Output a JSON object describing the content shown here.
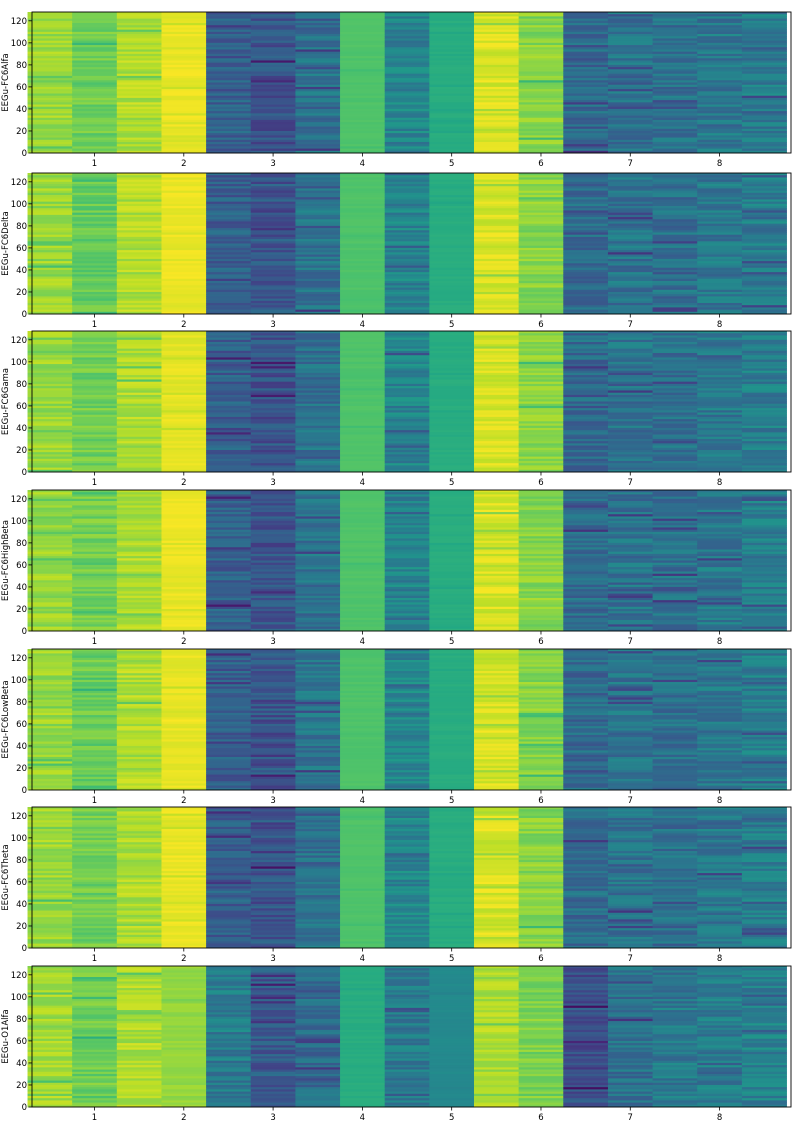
{
  "chart_data": [
    {
      "type": "heatmap",
      "ylabel": "EEGu-FC6Alfa",
      "xticks": [
        "1",
        "2",
        "3",
        "4",
        "5",
        "6",
        "7",
        "8"
      ],
      "yticks": [
        "0",
        "20",
        "40",
        "60",
        "80",
        "100",
        "120"
      ],
      "xlim": [
        0.3,
        8.8
      ],
      "ylim": [
        0,
        128
      ],
      "columns": [
        {
          "x": 0.5,
          "value": 0.85
        },
        {
          "x": 1.0,
          "value": 0.78
        },
        {
          "x": 1.5,
          "value": 0.88
        },
        {
          "x": 2.0,
          "value": 0.97
        },
        {
          "x": 2.5,
          "value": 0.3
        },
        {
          "x": 3.0,
          "value": 0.26
        },
        {
          "x": 3.5,
          "value": 0.38
        },
        {
          "x": 4.0,
          "value": 0.72
        },
        {
          "x": 4.5,
          "value": 0.45
        },
        {
          "x": 5.0,
          "value": 0.62
        },
        {
          "x": 5.5,
          "value": 0.94
        },
        {
          "x": 6.0,
          "value": 0.82
        },
        {
          "x": 6.5,
          "value": 0.35
        },
        {
          "x": 7.0,
          "value": 0.38
        },
        {
          "x": 7.5,
          "value": 0.37
        },
        {
          "x": 8.0,
          "value": 0.4
        },
        {
          "x": 8.5,
          "value": 0.42
        }
      ]
    },
    {
      "type": "heatmap",
      "ylabel": "EEGu-FC6Delta",
      "xticks": [
        "1",
        "2",
        "3",
        "4",
        "5",
        "6",
        "7",
        "8"
      ],
      "yticks": [
        "0",
        "20",
        "40",
        "60",
        "80",
        "100",
        "120"
      ],
      "xlim": [
        0.3,
        8.8
      ],
      "ylim": [
        0,
        128
      ],
      "columns": [
        {
          "x": 0.5,
          "value": 0.85
        },
        {
          "x": 1.0,
          "value": 0.76
        },
        {
          "x": 1.5,
          "value": 0.88
        },
        {
          "x": 2.0,
          "value": 0.97
        },
        {
          "x": 2.5,
          "value": 0.3
        },
        {
          "x": 3.0,
          "value": 0.27
        },
        {
          "x": 3.5,
          "value": 0.38
        },
        {
          "x": 4.0,
          "value": 0.72
        },
        {
          "x": 4.5,
          "value": 0.45
        },
        {
          "x": 5.0,
          "value": 0.62
        },
        {
          "x": 5.5,
          "value": 0.94
        },
        {
          "x": 6.0,
          "value": 0.82
        },
        {
          "x": 6.5,
          "value": 0.35
        },
        {
          "x": 7.0,
          "value": 0.38
        },
        {
          "x": 7.5,
          "value": 0.37
        },
        {
          "x": 8.0,
          "value": 0.4
        },
        {
          "x": 8.5,
          "value": 0.42
        }
      ]
    },
    {
      "type": "heatmap",
      "ylabel": "EEGu-FC6Gama",
      "xticks": [
        "1",
        "2",
        "3",
        "4",
        "5",
        "6",
        "7",
        "8"
      ],
      "yticks": [
        "0",
        "20",
        "40",
        "60",
        "80",
        "100",
        "120"
      ],
      "xlim": [
        0.3,
        8.8
      ],
      "ylim": [
        0,
        128
      ],
      "columns": [
        {
          "x": 0.5,
          "value": 0.85
        },
        {
          "x": 1.0,
          "value": 0.78
        },
        {
          "x": 1.5,
          "value": 0.88
        },
        {
          "x": 2.0,
          "value": 0.96
        },
        {
          "x": 2.5,
          "value": 0.3
        },
        {
          "x": 3.0,
          "value": 0.26
        },
        {
          "x": 3.5,
          "value": 0.38
        },
        {
          "x": 4.0,
          "value": 0.72
        },
        {
          "x": 4.5,
          "value": 0.45
        },
        {
          "x": 5.0,
          "value": 0.62
        },
        {
          "x": 5.5,
          "value": 0.94
        },
        {
          "x": 6.0,
          "value": 0.82
        },
        {
          "x": 6.5,
          "value": 0.35
        },
        {
          "x": 7.0,
          "value": 0.38
        },
        {
          "x": 7.5,
          "value": 0.37
        },
        {
          "x": 8.0,
          "value": 0.4
        },
        {
          "x": 8.5,
          "value": 0.42
        }
      ]
    },
    {
      "type": "heatmap",
      "ylabel": "EEGu-FC6HighBeta",
      "xticks": [
        "1",
        "2",
        "3",
        "4",
        "5",
        "6",
        "7",
        "8"
      ],
      "yticks": [
        "0",
        "20",
        "40",
        "60",
        "80",
        "100",
        "120"
      ],
      "xlim": [
        0.3,
        8.8
      ],
      "ylim": [
        0,
        128
      ],
      "columns": [
        {
          "x": 0.5,
          "value": 0.85
        },
        {
          "x": 1.0,
          "value": 0.79
        },
        {
          "x": 1.5,
          "value": 0.88
        },
        {
          "x": 2.0,
          "value": 0.97
        },
        {
          "x": 2.5,
          "value": 0.3
        },
        {
          "x": 3.0,
          "value": 0.26
        },
        {
          "x": 3.5,
          "value": 0.38
        },
        {
          "x": 4.0,
          "value": 0.72
        },
        {
          "x": 4.5,
          "value": 0.45
        },
        {
          "x": 5.0,
          "value": 0.62
        },
        {
          "x": 5.5,
          "value": 0.94
        },
        {
          "x": 6.0,
          "value": 0.82
        },
        {
          "x": 6.5,
          "value": 0.35
        },
        {
          "x": 7.0,
          "value": 0.38
        },
        {
          "x": 7.5,
          "value": 0.37
        },
        {
          "x": 8.0,
          "value": 0.4
        },
        {
          "x": 8.5,
          "value": 0.42
        }
      ]
    },
    {
      "type": "heatmap",
      "ylabel": "EEGu-FC6LowBeta",
      "xticks": [
        "1",
        "2",
        "3",
        "4",
        "5",
        "6",
        "7",
        "8"
      ],
      "yticks": [
        "0",
        "20",
        "40",
        "60",
        "80",
        "100",
        "120"
      ],
      "xlim": [
        0.3,
        8.8
      ],
      "ylim": [
        0,
        128
      ],
      "columns": [
        {
          "x": 0.5,
          "value": 0.85
        },
        {
          "x": 1.0,
          "value": 0.77
        },
        {
          "x": 1.5,
          "value": 0.88
        },
        {
          "x": 2.0,
          "value": 0.97
        },
        {
          "x": 2.5,
          "value": 0.3
        },
        {
          "x": 3.0,
          "value": 0.26
        },
        {
          "x": 3.5,
          "value": 0.38
        },
        {
          "x": 4.0,
          "value": 0.72
        },
        {
          "x": 4.5,
          "value": 0.45
        },
        {
          "x": 5.0,
          "value": 0.62
        },
        {
          "x": 5.5,
          "value": 0.94
        },
        {
          "x": 6.0,
          "value": 0.82
        },
        {
          "x": 6.5,
          "value": 0.35
        },
        {
          "x": 7.0,
          "value": 0.38
        },
        {
          "x": 7.5,
          "value": 0.37
        },
        {
          "x": 8.0,
          "value": 0.4
        },
        {
          "x": 8.5,
          "value": 0.42
        }
      ]
    },
    {
      "type": "heatmap",
      "ylabel": "EEGu-FC6Theta",
      "xticks": [
        "1",
        "2",
        "3",
        "4",
        "5",
        "6",
        "7",
        "8"
      ],
      "yticks": [
        "0",
        "20",
        "40",
        "60",
        "80",
        "100",
        "120"
      ],
      "xlim": [
        0.3,
        8.8
      ],
      "ylim": [
        0,
        128
      ],
      "columns": [
        {
          "x": 0.5,
          "value": 0.85
        },
        {
          "x": 1.0,
          "value": 0.78
        },
        {
          "x": 1.5,
          "value": 0.88
        },
        {
          "x": 2.0,
          "value": 0.97
        },
        {
          "x": 2.5,
          "value": 0.3
        },
        {
          "x": 3.0,
          "value": 0.26
        },
        {
          "x": 3.5,
          "value": 0.38
        },
        {
          "x": 4.0,
          "value": 0.72
        },
        {
          "x": 4.5,
          "value": 0.45
        },
        {
          "x": 5.0,
          "value": 0.62
        },
        {
          "x": 5.5,
          "value": 0.94
        },
        {
          "x": 6.0,
          "value": 0.82
        },
        {
          "x": 6.5,
          "value": 0.35
        },
        {
          "x": 7.0,
          "value": 0.38
        },
        {
          "x": 7.5,
          "value": 0.37
        },
        {
          "x": 8.0,
          "value": 0.4
        },
        {
          "x": 8.5,
          "value": 0.42
        }
      ]
    },
    {
      "type": "heatmap",
      "ylabel": "EEGu-O1Alfa",
      "xticks": [
        "1",
        "2",
        "3",
        "4",
        "5",
        "6",
        "7",
        "8"
      ],
      "yticks": [
        "0",
        "20",
        "40",
        "60",
        "80",
        "100",
        "120"
      ],
      "xlim": [
        0.3,
        8.8
      ],
      "ylim": [
        0,
        128
      ],
      "columns": [
        {
          "x": 0.5,
          "value": 0.86
        },
        {
          "x": 1.0,
          "value": 0.78
        },
        {
          "x": 1.5,
          "value": 0.88
        },
        {
          "x": 2.0,
          "value": 0.84
        },
        {
          "x": 2.5,
          "value": 0.42
        },
        {
          "x": 3.0,
          "value": 0.28
        },
        {
          "x": 3.5,
          "value": 0.35
        },
        {
          "x": 4.0,
          "value": 0.62
        },
        {
          "x": 4.5,
          "value": 0.42
        },
        {
          "x": 5.0,
          "value": 0.47
        },
        {
          "x": 5.5,
          "value": 0.88
        },
        {
          "x": 6.0,
          "value": 0.8
        },
        {
          "x": 6.5,
          "value": 0.24
        },
        {
          "x": 7.0,
          "value": 0.37
        },
        {
          "x": 7.5,
          "value": 0.4
        },
        {
          "x": 8.0,
          "value": 0.42
        },
        {
          "x": 8.5,
          "value": 0.44
        }
      ]
    }
  ]
}
